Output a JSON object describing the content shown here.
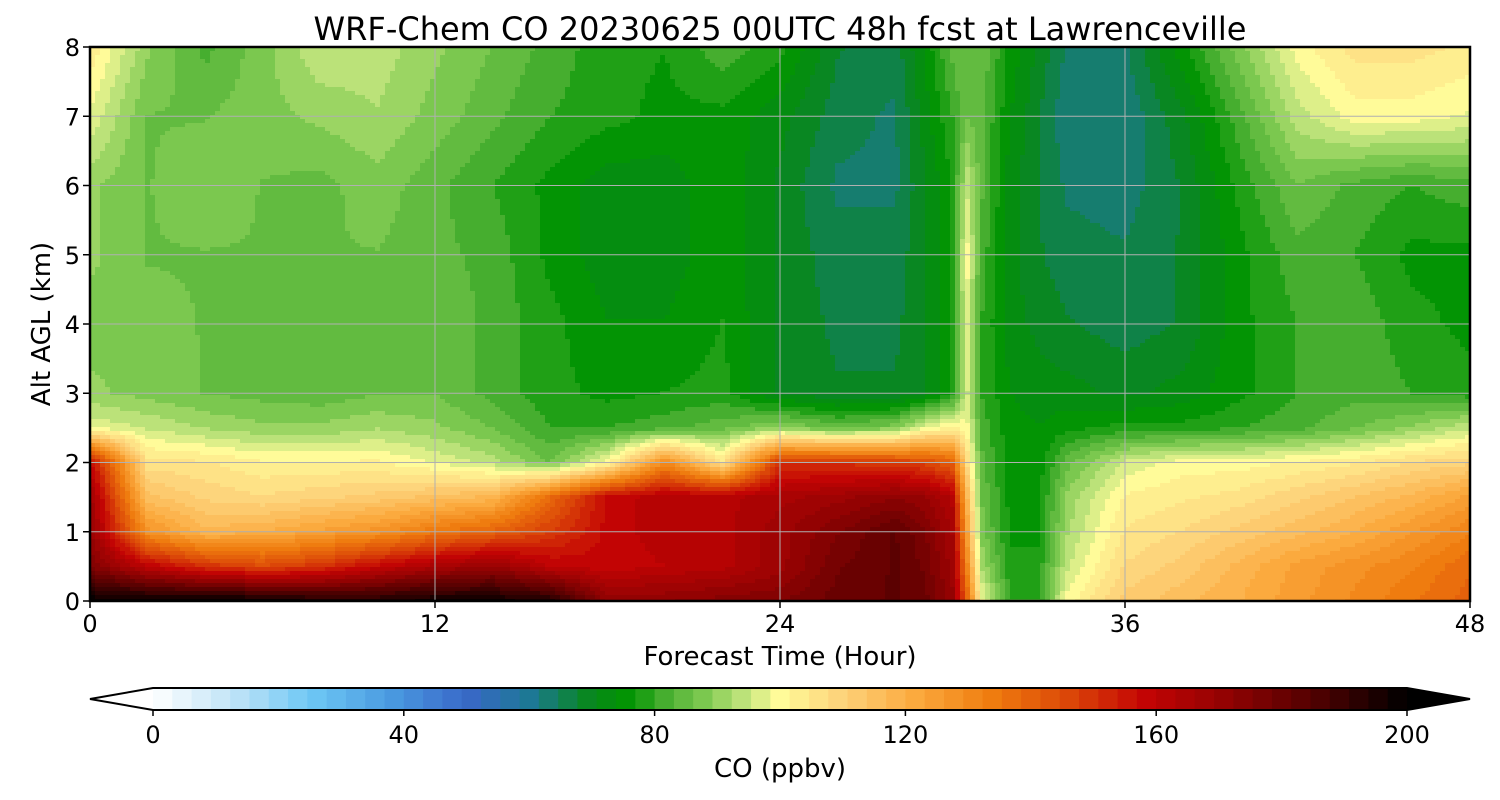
{
  "chart_data": {
    "type": "heatmap",
    "title": "WRF-Chem CO  20230625 00UTC 48h fcst at Lawrenceville",
    "xlabel": "Forecast Time (Hour)",
    "ylabel": "Alt AGL (km)",
    "xlim": [
      0,
      48
    ],
    "ylim": [
      0,
      8
    ],
    "xticks": [
      0,
      12,
      24,
      36,
      48
    ],
    "yticks": [
      0,
      1,
      2,
      3,
      4,
      5,
      6,
      7,
      8
    ],
    "grid": true,
    "x": [
      0,
      2,
      4,
      6,
      8,
      10,
      12,
      14,
      16,
      18,
      20,
      22,
      24,
      26,
      28,
      29,
      30,
      30.5,
      31,
      32,
      33,
      34,
      36,
      38,
      40,
      42,
      44,
      46,
      48
    ],
    "y": [
      0,
      0.5,
      1,
      1.5,
      2,
      2.5,
      3,
      4,
      5,
      6,
      7,
      8
    ],
    "z": [
      [
        200,
        200,
        200,
        200,
        195,
        195,
        198,
        198,
        195,
        172,
        172,
        174,
        175,
        180,
        182,
        180,
        170,
        140,
        100,
        80,
        80,
        100,
        112,
        116,
        120,
        125,
        130,
        135,
        140
      ],
      [
        175,
        160,
        150,
        145,
        150,
        158,
        165,
        170,
        160,
        158,
        160,
        162,
        168,
        178,
        182,
        178,
        168,
        132,
        92,
        78,
        78,
        95,
        108,
        112,
        118,
        124,
        128,
        132,
        138
      ],
      [
        170,
        128,
        118,
        120,
        124,
        128,
        135,
        140,
        148,
        158,
        162,
        162,
        168,
        175,
        182,
        176,
        166,
        125,
        88,
        76,
        76,
        92,
        105,
        108,
        112,
        116,
        120,
        126,
        132
      ],
      [
        168,
        115,
        110,
        108,
        110,
        112,
        115,
        118,
        138,
        158,
        162,
        162,
        165,
        168,
        172,
        170,
        162,
        118,
        86,
        76,
        76,
        90,
        102,
        104,
        106,
        110,
        114,
        118,
        124
      ],
      [
        158,
        106,
        105,
        102,
        102,
        102,
        98,
        94,
        86,
        100,
        130,
        105,
        150,
        150,
        148,
        146,
        140,
        108,
        84,
        75,
        75,
        85,
        96,
        100,
        100,
        102,
        104,
        108,
        110
      ],
      [
        98,
        95,
        92,
        90,
        90,
        92,
        90,
        86,
        80,
        80,
        82,
        85,
        90,
        85,
        88,
        98,
        102,
        100,
        82,
        75,
        74,
        76,
        78,
        78,
        80,
        82,
        86,
        90,
        95
      ],
      [
        90,
        88,
        86,
        85,
        84,
        86,
        86,
        82,
        78,
        76,
        77,
        78,
        70,
        68,
        68,
        70,
        78,
        96,
        80,
        74,
        72,
        72,
        70,
        72,
        76,
        80,
        82,
        80,
        78
      ],
      [
        88,
        87,
        86,
        85,
        84,
        86,
        86,
        82,
        78,
        74,
        74,
        77,
        70,
        67,
        67,
        70,
        77,
        98,
        80,
        72,
        70,
        68,
        66,
        68,
        76,
        80,
        82,
        78,
        76
      ],
      [
        90,
        86,
        86,
        86,
        86,
        86,
        84,
        82,
        76,
        72,
        72,
        76,
        70,
        66,
        66,
        70,
        77,
        100,
        82,
        72,
        68,
        66,
        65,
        68,
        76,
        82,
        80,
        76,
        76
      ],
      [
        90,
        86,
        88,
        86,
        85,
        88,
        84,
        80,
        76,
        72,
        72,
        76,
        70,
        64,
        64,
        70,
        77,
        95,
        84,
        72,
        68,
        64,
        63,
        68,
        78,
        86,
        82,
        80,
        82
      ],
      [
        98,
        86,
        86,
        88,
        90,
        92,
        88,
        84,
        80,
        78,
        76,
        76,
        72,
        66,
        64,
        72,
        80,
        86,
        84,
        74,
        68,
        62,
        62,
        70,
        82,
        94,
        100,
        100,
        98
      ],
      [
        104,
        90,
        82,
        88,
        95,
        94,
        90,
        86,
        82,
        78,
        77,
        82,
        78,
        68,
        66,
        74,
        84,
        86,
        86,
        76,
        70,
        64,
        64,
        76,
        88,
        100,
        106,
        106,
        104
      ]
    ],
    "colorbar": {
      "label": "CO  (ppbv)",
      "min": 0,
      "max": 200,
      "levels": 65,
      "ticks": [
        0,
        40,
        80,
        120,
        160,
        200
      ],
      "extend": "both",
      "location": "bottom",
      "stops": [
        {
          "v": 0,
          "c": "#ffffff"
        },
        {
          "v": 13,
          "c": "#bfe3f7"
        },
        {
          "v": 25,
          "c": "#6ec8f5"
        },
        {
          "v": 38,
          "c": "#4a9ae0"
        },
        {
          "v": 50,
          "c": "#3968c8"
        },
        {
          "v": 60,
          "c": "#1d7895"
        },
        {
          "v": 70,
          "c": "#078818"
        },
        {
          "v": 76,
          "c": "#029502"
        },
        {
          "v": 82,
          "c": "#4cb033"
        },
        {
          "v": 88,
          "c": "#7ec950"
        },
        {
          "v": 94,
          "c": "#bde37a"
        },
        {
          "v": 100,
          "c": "#fffb99"
        },
        {
          "v": 110,
          "c": "#fdd27a"
        },
        {
          "v": 122,
          "c": "#fba83c"
        },
        {
          "v": 134,
          "c": "#ef7b0e"
        },
        {
          "v": 146,
          "c": "#db4708"
        },
        {
          "v": 158,
          "c": "#c40404"
        },
        {
          "v": 172,
          "c": "#8e0202"
        },
        {
          "v": 186,
          "c": "#4d0101"
        },
        {
          "v": 200,
          "c": "#000000"
        }
      ]
    }
  }
}
